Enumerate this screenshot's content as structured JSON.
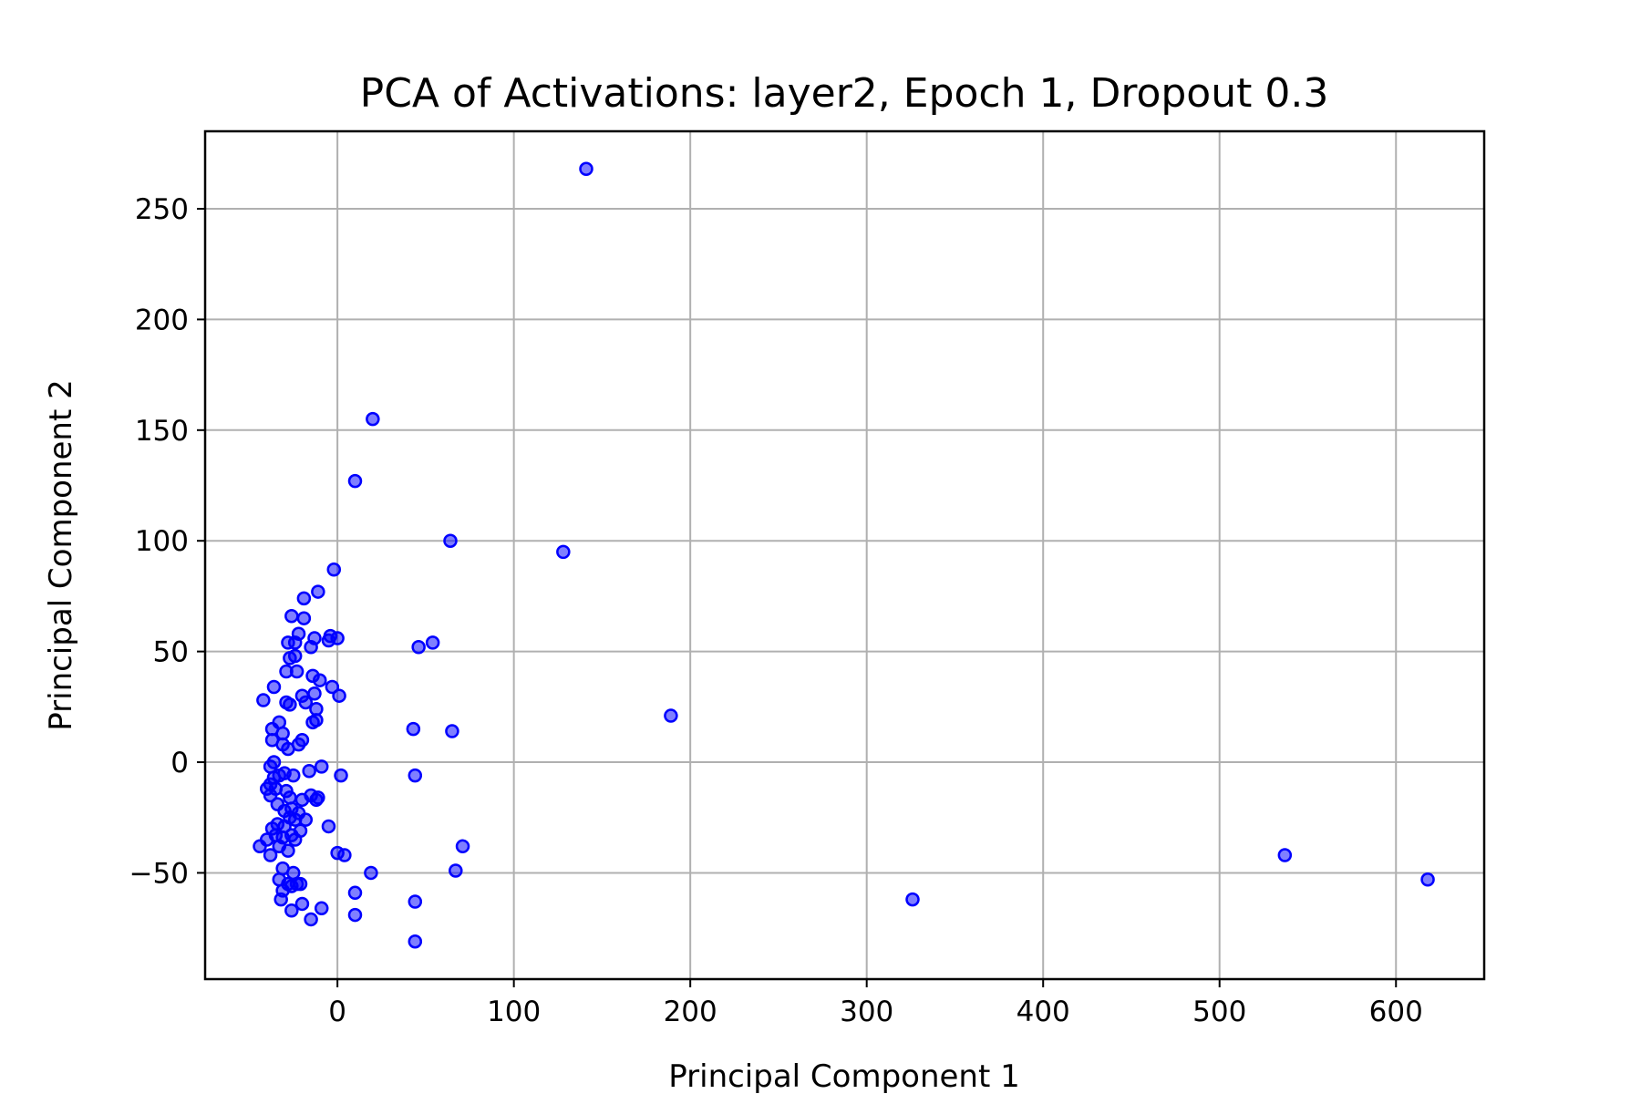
{
  "chart_data": {
    "type": "scatter",
    "title": "PCA of Activations: layer2, Epoch 1, Dropout 0.3",
    "xlabel": "Principal Component 1",
    "ylabel": "Principal Component 2",
    "xlim": [
      -75,
      650
    ],
    "ylim": [
      -98,
      285
    ],
    "xticks": [
      0,
      100,
      200,
      300,
      400,
      500,
      600
    ],
    "xtick_labels": [
      "0",
      "100",
      "200",
      "300",
      "400",
      "500",
      "600"
    ],
    "yticks": [
      -50,
      0,
      50,
      100,
      150,
      200,
      250
    ],
    "ytick_labels": [
      "−50",
      "0",
      "50",
      "100",
      "150",
      "200",
      "250"
    ],
    "grid": true,
    "marker_color": "#0000ff",
    "points": [
      [
        141,
        268
      ],
      [
        20,
        155
      ],
      [
        10,
        127
      ],
      [
        64,
        100
      ],
      [
        128,
        95
      ],
      [
        -2,
        87
      ],
      [
        -11,
        77
      ],
      [
        -19,
        74
      ],
      [
        -26,
        66
      ],
      [
        -19,
        65
      ],
      [
        -22,
        58
      ],
      [
        -4,
        57
      ],
      [
        0,
        56
      ],
      [
        -13,
        56
      ],
      [
        -5,
        55
      ],
      [
        -28,
        54
      ],
      [
        -24,
        54
      ],
      [
        -15,
        52
      ],
      [
        46,
        52
      ],
      [
        54,
        54
      ],
      [
        -27,
        47
      ],
      [
        -24,
        48
      ],
      [
        -29,
        41
      ],
      [
        -23,
        41
      ],
      [
        -14,
        39
      ],
      [
        -10,
        37
      ],
      [
        -36,
        34
      ],
      [
        -3,
        34
      ],
      [
        -13,
        31
      ],
      [
        -20,
        30
      ],
      [
        1,
        30
      ],
      [
        -42,
        28
      ],
      [
        -29,
        27
      ],
      [
        -18,
        27
      ],
      [
        -27,
        26
      ],
      [
        -12,
        24
      ],
      [
        -12,
        19
      ],
      [
        -33,
        18
      ],
      [
        -14,
        18
      ],
      [
        65,
        14
      ],
      [
        43,
        15
      ],
      [
        189,
        21
      ],
      [
        -37,
        15
      ],
      [
        -31,
        13
      ],
      [
        -37,
        10
      ],
      [
        -20,
        10
      ],
      [
        -22,
        8
      ],
      [
        -31,
        8
      ],
      [
        -28,
        6
      ],
      [
        -36,
        0
      ],
      [
        -38,
        -2
      ],
      [
        -16,
        -4
      ],
      [
        -9,
        -2
      ],
      [
        -30,
        -5
      ],
      [
        -33,
        -6
      ],
      [
        -36,
        -7
      ],
      [
        2,
        -6
      ],
      [
        44,
        -6
      ],
      [
        -25,
        -6
      ],
      [
        -38,
        -10
      ],
      [
        -40,
        -12
      ],
      [
        -35,
        -12
      ],
      [
        -29,
        -13
      ],
      [
        -38,
        -15
      ],
      [
        -27,
        -16
      ],
      [
        -15,
        -15
      ],
      [
        -20,
        -17
      ],
      [
        -12,
        -17
      ],
      [
        -11,
        -16
      ],
      [
        -34,
        -19
      ],
      [
        -26,
        -21
      ],
      [
        -30,
        -22
      ],
      [
        -22,
        -23
      ],
      [
        -27,
        -25
      ],
      [
        -24,
        -26
      ],
      [
        -18,
        -26
      ],
      [
        -34,
        -28
      ],
      [
        -37,
        -30
      ],
      [
        -30,
        -29
      ],
      [
        -5,
        -29
      ],
      [
        -21,
        -31
      ],
      [
        -35,
        -33
      ],
      [
        -26,
        -33
      ],
      [
        -31,
        -34
      ],
      [
        -40,
        -35
      ],
      [
        -24,
        -35
      ],
      [
        -33,
        -38
      ],
      [
        -44,
        -38
      ],
      [
        -28,
        -40
      ],
      [
        -38,
        -42
      ],
      [
        0,
        -41
      ],
      [
        4,
        -42
      ],
      [
        71,
        -38
      ],
      [
        -31,
        -48
      ],
      [
        -25,
        -50
      ],
      [
        -33,
        -53
      ],
      [
        -23,
        -55
      ],
      [
        -28,
        -55
      ],
      [
        -21,
        -55
      ],
      [
        -26,
        -56
      ],
      [
        -31,
        -58
      ],
      [
        -32,
        -62
      ],
      [
        -20,
        -64
      ],
      [
        -9,
        -66
      ],
      [
        -26,
        -67
      ],
      [
        -15,
        -71
      ],
      [
        19,
        -50
      ],
      [
        67,
        -49
      ],
      [
        10,
        -59
      ],
      [
        44,
        -63
      ],
      [
        10,
        -69
      ],
      [
        44,
        -81
      ],
      [
        326,
        -62
      ],
      [
        537,
        -42
      ],
      [
        618,
        -53
      ]
    ]
  }
}
